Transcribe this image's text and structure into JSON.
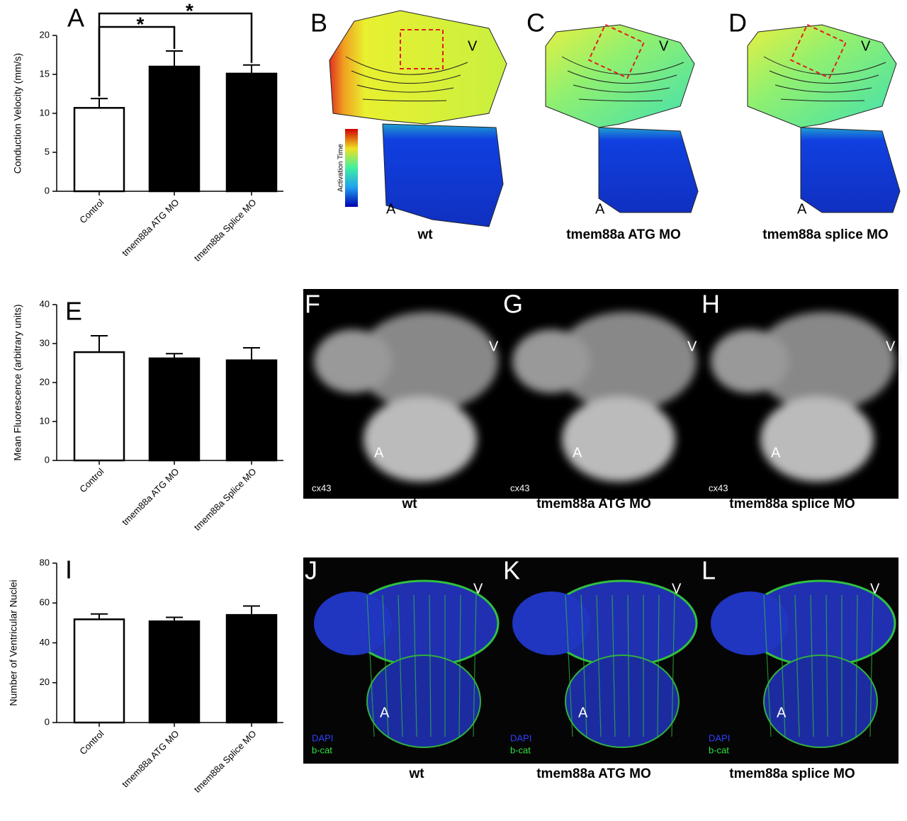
{
  "chart_data": [
    {
      "type": "bar",
      "panel": "A",
      "y_label": "Conduction Velocity (mm/s)",
      "categories": [
        "Control",
        "tmem88a ATG MO",
        "tmem88a Splice MO"
      ],
      "values": [
        10.7,
        16,
        15.1
      ],
      "errors": [
        1.2,
        2,
        1.1
      ],
      "colors": [
        "#ffffff",
        "#000000",
        "#000000"
      ],
      "ylim": [
        0,
        20
      ],
      "yticks": [
        0,
        5,
        10,
        15,
        20
      ],
      "annotations": [
        "*",
        "*"
      ]
    },
    {
      "type": "bar",
      "panel": "E",
      "y_label": "Mean Fluorescence (arbitrary units)",
      "categories": [
        "Control",
        "tmem88a ATG MO",
        "tmem88a Splice MO"
      ],
      "values": [
        27.8,
        26.2,
        25.7
      ],
      "errors": [
        4.2,
        1.2,
        3.2
      ],
      "colors": [
        "#ffffff",
        "#000000",
        "#000000"
      ],
      "ylim": [
        0,
        40
      ],
      "yticks": [
        0,
        10,
        20,
        30,
        40
      ]
    },
    {
      "type": "bar",
      "panel": "I",
      "y_label": "Number of Ventricular Nuclei",
      "categories": [
        "Control",
        "tmem88a ATG MO",
        "tmem88a Splice MO"
      ],
      "values": [
        51.8,
        50.8,
        54
      ],
      "errors": [
        2.7,
        2,
        4.5
      ],
      "colors": [
        "#ffffff",
        "#000000",
        "#000000"
      ],
      "ylim": [
        0,
        80
      ],
      "yticks": [
        0,
        20,
        40,
        60,
        80
      ]
    }
  ],
  "maps": [
    {
      "letter": "B",
      "caption": "wt",
      "ventricle": "V",
      "atrium": "A",
      "legend": "Activation Time"
    },
    {
      "letter": "C",
      "caption": "tmem88a ATG MO",
      "ventricle": "V",
      "atrium": "A"
    },
    {
      "letter": "D",
      "caption": "tmem88a splice MO",
      "ventricle": "V",
      "atrium": "A"
    }
  ],
  "cx43": [
    {
      "letter": "F",
      "caption": "wt",
      "ventricle": "V",
      "atrium": "A",
      "stain": "cx43"
    },
    {
      "letter": "G",
      "caption": "tmem88a ATG MO",
      "ventricle": "V",
      "atrium": "A",
      "stain": "cx43"
    },
    {
      "letter": "H",
      "caption": "tmem88a splice MO",
      "ventricle": "V",
      "atrium": "A",
      "stain": "cx43"
    }
  ],
  "bcat": [
    {
      "letter": "J",
      "caption": "wt",
      "ventricle": "V",
      "atrium": "A",
      "stains": [
        "DAPI",
        "b-cat"
      ]
    },
    {
      "letter": "K",
      "caption": "tmem88a ATG MO",
      "ventricle": "V",
      "atrium": "A",
      "stains": [
        "DAPI",
        "b-cat"
      ]
    },
    {
      "letter": "L",
      "caption": "tmem88a splice MO",
      "ventricle": "V",
      "atrium": "A",
      "stains": [
        "DAPI",
        "b-cat"
      ]
    }
  ]
}
